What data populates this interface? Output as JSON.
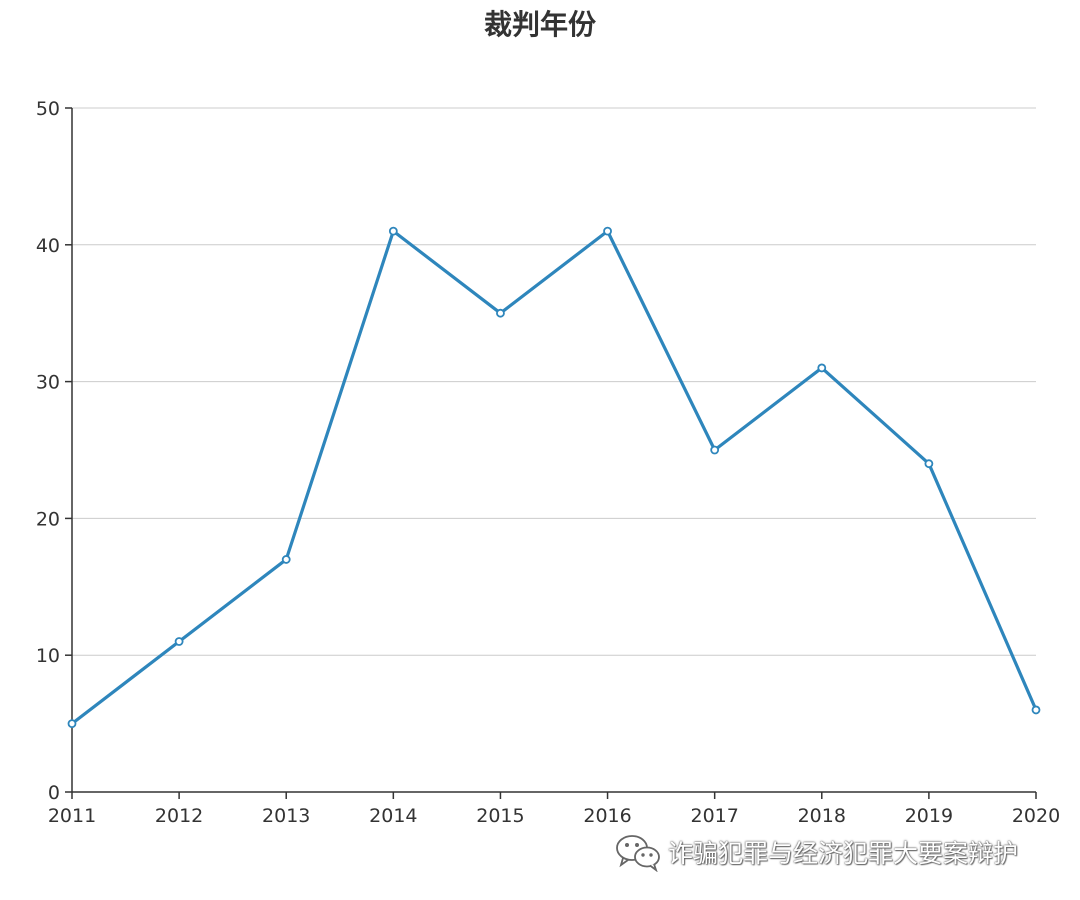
{
  "chart_data": {
    "type": "line",
    "title": "裁判年份",
    "x": [
      "2011",
      "2012",
      "2013",
      "2014",
      "2015",
      "2016",
      "2017",
      "2018",
      "2019",
      "2020"
    ],
    "series": [
      {
        "values": [
          5,
          11,
          17,
          41,
          35,
          41,
          25,
          31,
          24,
          6
        ]
      }
    ],
    "yticks": [
      "0",
      "10",
      "20",
      "30",
      "40",
      "50"
    ],
    "ylim": [
      0,
      50
    ],
    "xlabel": "",
    "ylabel": "",
    "grid": true,
    "colors": {
      "line": "#2e86bc",
      "marker_fill": "#ffffff",
      "grid": "#cccccc",
      "axis": "#333333"
    }
  },
  "watermark": {
    "icon": "wechat-icon",
    "text": "诈骗犯罪与经济犯罪大要案辩护"
  }
}
